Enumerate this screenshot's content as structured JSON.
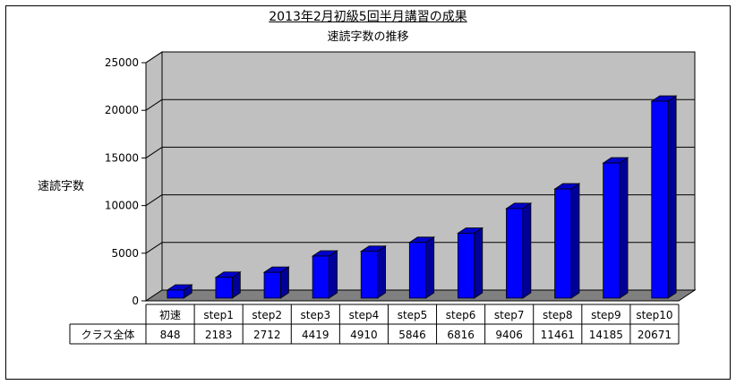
{
  "title": "2013年2月初級5回半月講習の成果",
  "subtitle": "速読字数の推移",
  "colors": {
    "bar": "#0000ff",
    "bar_top": "#0000cc",
    "bar_side": "#000099",
    "wall": "#c0c0c0",
    "floor": "#808080"
  },
  "chart_data": {
    "type": "bar",
    "title": "2013年2月初級5回半月講習の成果",
    "subtitle": "速読字数の推移",
    "ylabel": "速読字数",
    "xlabel": "",
    "categories": [
      "初速",
      "step1",
      "step2",
      "step3",
      "step4",
      "step5",
      "step6",
      "step7",
      "step8",
      "step9",
      "step10"
    ],
    "series": [
      {
        "name": "クラス全体",
        "values": [
          848,
          2183,
          2712,
          4419,
          4910,
          5846,
          6816,
          9406,
          11461,
          14185,
          20671
        ]
      }
    ],
    "ylim": [
      0,
      25000
    ],
    "yticks": [
      "0",
      "5000",
      "10000",
      "15000",
      "20000",
      "25000"
    ],
    "grid": true,
    "style": "3d",
    "legend": "data-table"
  }
}
